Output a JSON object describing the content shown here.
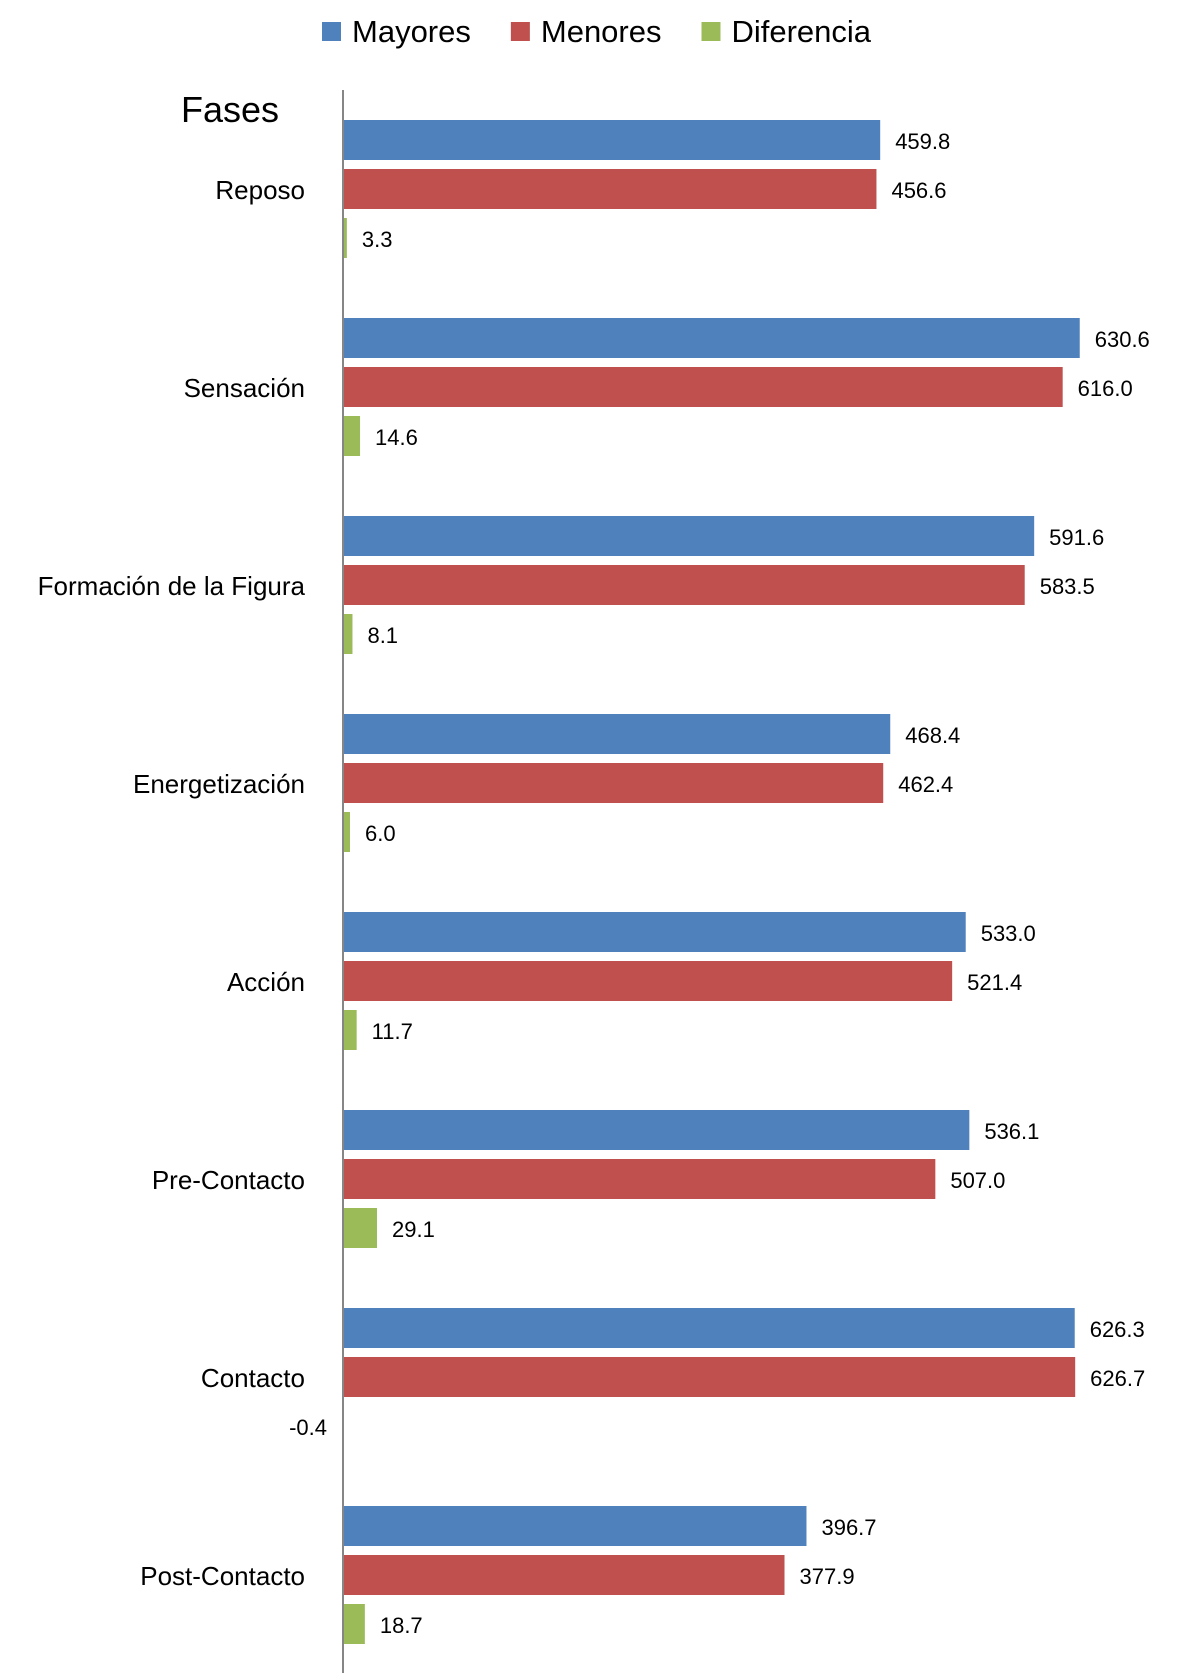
{
  "chart_data": {
    "type": "bar",
    "orientation": "horizontal",
    "title": "Fases",
    "categories": [
      "Reposo",
      "Sensación",
      "Formación  de la Figura",
      "Energetización",
      "Acción",
      "Pre-Contacto",
      "Contacto",
      "Post-Contacto"
    ],
    "series": [
      {
        "name": "Mayores",
        "color": "#4F81BD",
        "values": [
          459.8,
          630.6,
          591.6,
          468.4,
          533.0,
          536.1,
          626.3,
          396.7
        ]
      },
      {
        "name": "Menores",
        "color": "#C0504D",
        "values": [
          456.6,
          616.0,
          583.5,
          462.4,
          521.4,
          507.0,
          626.7,
          377.9
        ]
      },
      {
        "name": "Diferencia",
        "color": "#9BBB59",
        "values": [
          3.3,
          14.6,
          8.1,
          6.0,
          11.7,
          29.1,
          -0.4,
          18.7
        ]
      }
    ],
    "legend": "top",
    "grid": false,
    "xlim": [
      0,
      700
    ],
    "data_labels": true
  }
}
